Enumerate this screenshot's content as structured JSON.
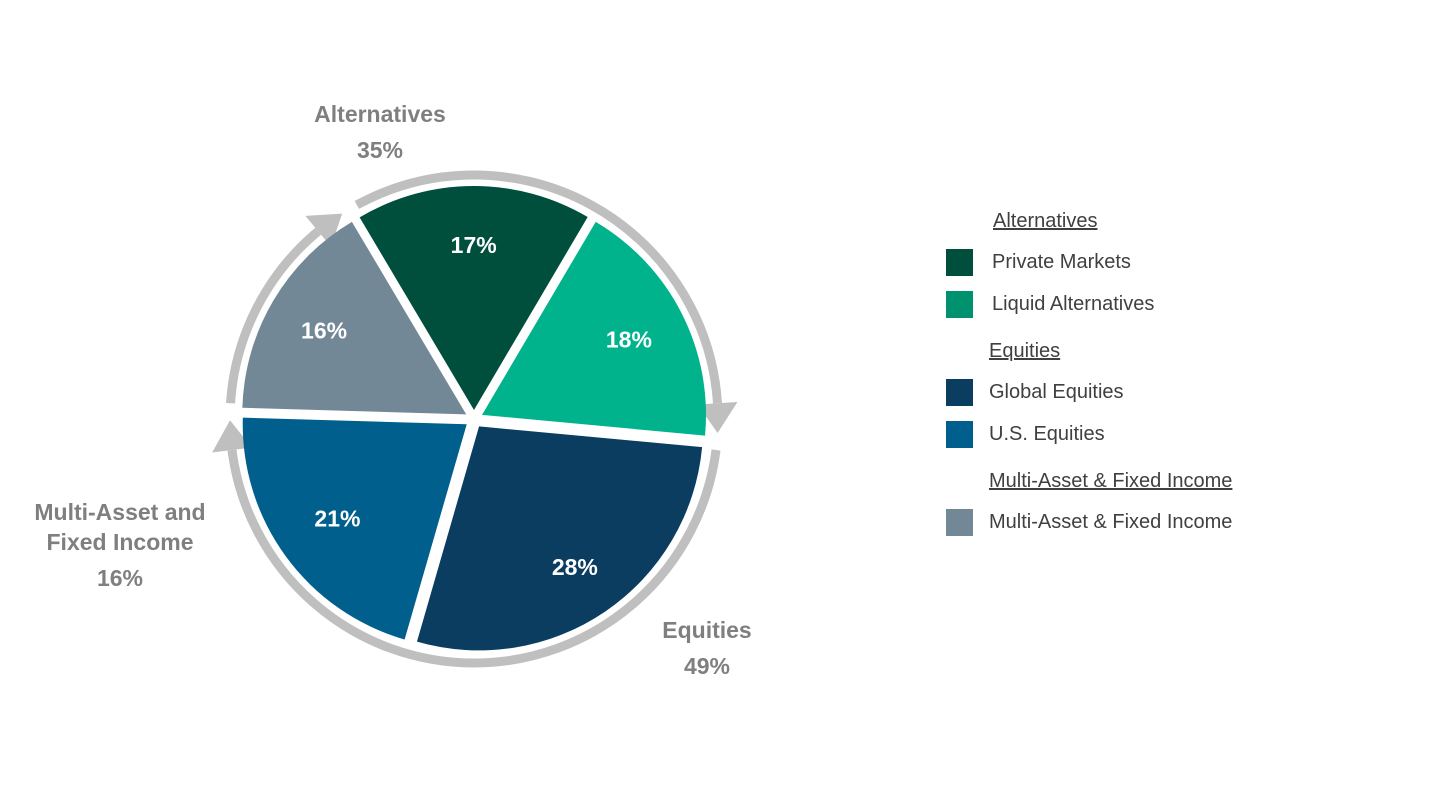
{
  "chart_data": {
    "type": "pie",
    "slices": [
      {
        "label": "Liquid Alternatives",
        "value": 18,
        "value_label": "18%",
        "color": "#00b38c"
      },
      {
        "label": "Global Equities",
        "value": 28,
        "value_label": "28%",
        "color": "#0b3d61"
      },
      {
        "label": "U.S. Equities",
        "value": 21,
        "value_label": "21%",
        "color": "#005f8c"
      },
      {
        "label": "Multi-Asset & Fixed Income",
        "value": 16,
        "value_label": "16%",
        "color": "#738896"
      },
      {
        "label": "Private Markets",
        "value": 17,
        "value_label": "17%",
        "color": "#004f3d"
      }
    ],
    "groups": [
      {
        "name": "Alternatives",
        "value_label": "35%"
      },
      {
        "name": "Equities",
        "value_label": "49%"
      },
      {
        "name_lines": [
          "Multi-Asset and",
          "Fixed Income"
        ],
        "value_label": "16%"
      }
    ],
    "legend": [
      {
        "header": "Alternatives",
        "items": [
          {
            "label": "Private Markets",
            "color": "#004f3d"
          },
          {
            "label": "Liquid Alternatives",
            "color": "#00916e"
          }
        ]
      },
      {
        "header": "Equities",
        "items": [
          {
            "label": "Global Equities",
            "color": "#0b3d61"
          },
          {
            "label": "U.S. Equities",
            "color": "#005f8c"
          }
        ]
      },
      {
        "header": "Multi-Asset & Fixed Income",
        "items": [
          {
            "label": "Multi-Asset & Fixed Income",
            "color": "#738896"
          }
        ]
      }
    ],
    "legend_position": "right",
    "arrow_color": "#bfbfbf"
  }
}
